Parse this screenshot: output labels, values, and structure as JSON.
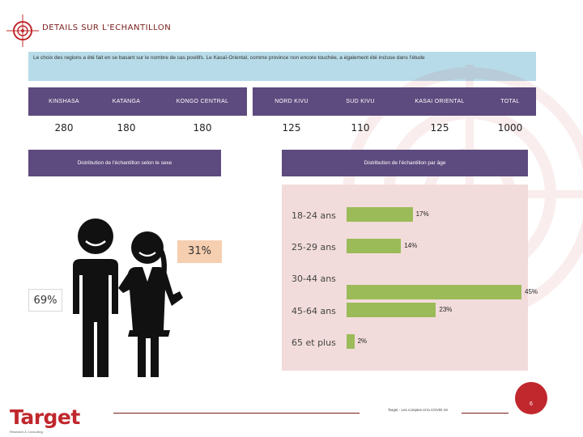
{
  "header": {
    "title": "DETAILS SUR L'ECHANTILLON"
  },
  "intro": {
    "text": "Le choix des regions a été fait en se basant sur le nombre de cas positifs. Le Kasaï-Oriental, comme province non encore touchée, a également été incluse dans l'étude"
  },
  "regions": [
    {
      "name": "KINSHASA",
      "value": "280"
    },
    {
      "name": "KATANGA",
      "value": "180"
    },
    {
      "name": "KONGO CENTRAL",
      "value": "180"
    },
    {
      "name": "NORD KIVU",
      "value": "125"
    },
    {
      "name": "SUD KIVU",
      "value": "110"
    },
    {
      "name": "KASAI ORIENTAL",
      "value": "125"
    },
    {
      "name": "TOTAL",
      "value": "1000"
    }
  ],
  "gender": {
    "header": "Distribution de l'échantillon selon le sexe",
    "female_pct": "31%",
    "male_pct": "69%"
  },
  "age": {
    "header": "Distribution de l'échantillon par âge",
    "rows": [
      {
        "label": "18-24 ans",
        "value": 17,
        "display": "17%"
      },
      {
        "label": "25-29 ans",
        "value": 14,
        "display": "14%"
      },
      {
        "label": "30-44 ans",
        "value": 45,
        "display": "45%"
      },
      {
        "label": "45-64 ans",
        "value": 23,
        "display": "23%"
      },
      {
        "label": "65 et plus",
        "value": 2,
        "display": "2%"
      }
    ]
  },
  "chart_data": {
    "type": "bar",
    "title": "Distribution de l'échantillon par âge",
    "categories": [
      "18-24 ans",
      "25-29 ans",
      "30-44 ans",
      "45-64 ans",
      "65 et plus"
    ],
    "values": [
      17,
      14,
      45,
      23,
      2
    ],
    "xlabel": "",
    "ylabel": "",
    "xlim": [
      0,
      45
    ],
    "orientation": "horizontal",
    "grid": false
  },
  "footer": {
    "text": "Target - Les comptes et la COVID-19",
    "page": "6"
  },
  "brand": {
    "name": "Target",
    "tagline": "Research & Consulting"
  },
  "colors": {
    "purple": "#5d4a7e",
    "blue": "#b7dbe8",
    "green": "#9bbb59",
    "pink": "#f2dcdb",
    "red": "#c0282d",
    "peach": "#f6ceb0"
  }
}
